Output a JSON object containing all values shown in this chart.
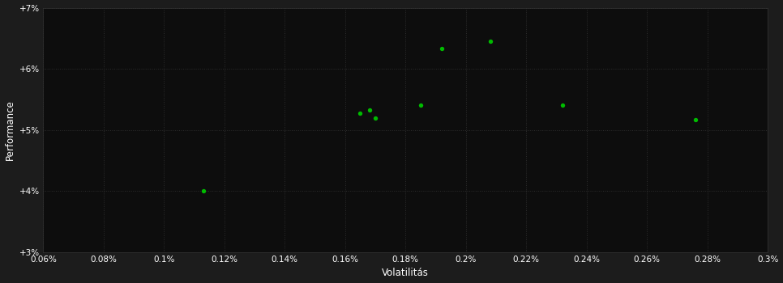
{
  "xlabel": "Volatilitás",
  "ylabel": "Performance",
  "background_color": "#1c1c1c",
  "plot_bg_color": "#0d0d0d",
  "grid_color": "#2d2d2d",
  "text_color": "#ffffff",
  "tick_label_color": "#ffffff",
  "marker_color": "#00bb00",
  "xlim": [
    0.06,
    0.3
  ],
  "ylim": [
    3.0,
    7.0
  ],
  "xticks": [
    0.06,
    0.08,
    0.1,
    0.12,
    0.14,
    0.16,
    0.18,
    0.2,
    0.22,
    0.24,
    0.26,
    0.28,
    0.3
  ],
  "yticks": [
    3.0,
    4.0,
    5.0,
    6.0,
    7.0
  ],
  "xtick_labels": [
    "0.06%",
    "0.08%",
    "0.1%",
    "0.12%",
    "0.14%",
    "0.16%",
    "0.18%",
    "0.2%",
    "0.22%",
    "0.24%",
    "0.26%",
    "0.28%",
    "0.3%"
  ],
  "ytick_labels": [
    "+3%",
    "+4%",
    "+5%",
    "+6%",
    "+7%"
  ],
  "scatter_x": [
    0.113,
    0.165,
    0.168,
    0.17,
    0.185,
    0.192,
    0.208,
    0.232,
    0.276
  ],
  "scatter_y": [
    4.0,
    5.27,
    5.33,
    5.19,
    5.4,
    6.33,
    6.45,
    5.4,
    5.17
  ],
  "marker_size": 15
}
